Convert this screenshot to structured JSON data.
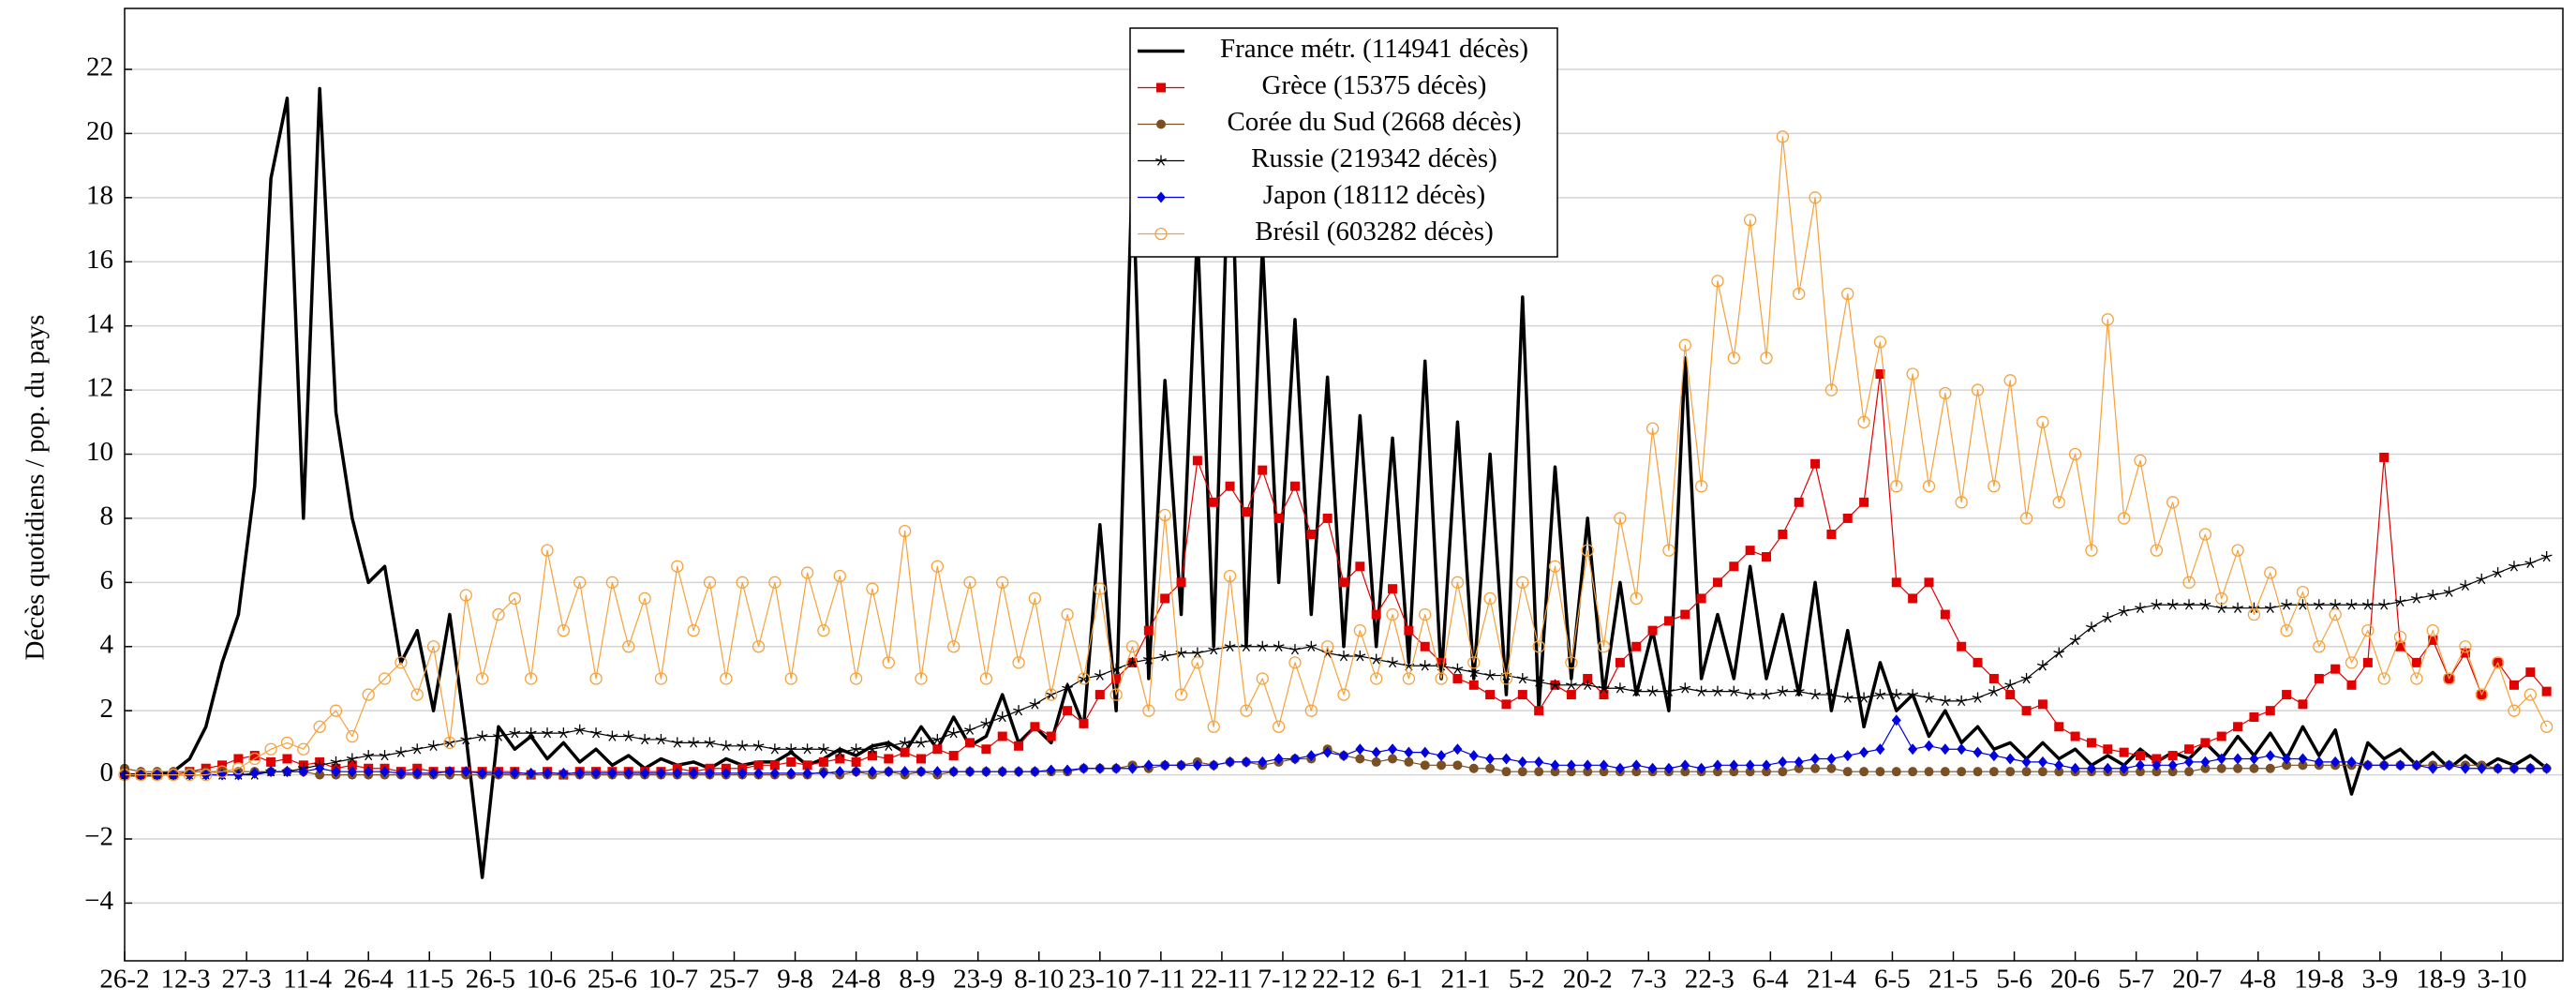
{
  "chart_data": {
    "type": "line",
    "y_label": "Décès quotidiens / pop. du pays",
    "x": [
      0,
      4,
      8,
      12,
      16,
      20,
      24,
      28,
      32,
      36,
      40,
      44,
      48,
      52,
      56,
      60,
      64,
      68,
      72,
      76,
      80,
      84,
      88,
      92,
      96,
      100,
      104,
      108,
      112,
      116,
      120,
      124,
      128,
      132,
      136,
      140,
      144,
      148,
      152,
      156,
      160,
      164,
      168,
      172,
      176,
      180,
      184,
      188,
      192,
      196,
      200,
      204,
      208,
      212,
      216,
      220,
      224,
      228,
      232,
      236,
      240,
      244,
      248,
      252,
      256,
      260,
      264,
      268,
      272,
      276,
      280,
      284,
      288,
      292,
      296,
      300,
      304,
      308,
      312,
      316,
      320,
      324,
      328,
      332,
      336,
      340,
      344,
      348,
      352,
      356,
      360,
      364,
      368,
      372,
      376,
      380,
      384,
      388,
      392,
      396,
      400,
      404,
      408,
      412,
      416,
      420,
      424,
      428,
      432,
      436,
      440,
      444,
      448,
      452,
      456,
      460,
      464,
      468,
      472,
      476,
      480,
      484,
      488,
      492,
      496,
      500,
      504,
      508,
      512,
      516,
      520,
      524,
      528,
      532,
      536,
      540,
      544,
      548,
      552,
      556,
      560,
      564,
      568,
      572,
      576,
      580,
      584,
      588,
      592,
      596
    ],
    "xlim": [
      0,
      600
    ],
    "xticks": [
      {
        "value": 0,
        "label": "26-2"
      },
      {
        "value": 15,
        "label": "12-3"
      },
      {
        "value": 30,
        "label": "27-3"
      },
      {
        "value": 45,
        "label": "11-4"
      },
      {
        "value": 60,
        "label": "26-4"
      },
      {
        "value": 75,
        "label": "11-5"
      },
      {
        "value": 90,
        "label": "26-5"
      },
      {
        "value": 105,
        "label": "10-6"
      },
      {
        "value": 120,
        "label": "25-6"
      },
      {
        "value": 135,
        "label": "10-7"
      },
      {
        "value": 150,
        "label": "25-7"
      },
      {
        "value": 165,
        "label": "9-8"
      },
      {
        "value": 180,
        "label": "24-8"
      },
      {
        "value": 195,
        "label": "8-9"
      },
      {
        "value": 210,
        "label": "23-9"
      },
      {
        "value": 225,
        "label": "8-10"
      },
      {
        "value": 240,
        "label": "23-10"
      },
      {
        "value": 255,
        "label": "7-11"
      },
      {
        "value": 270,
        "label": "22-11"
      },
      {
        "value": 285,
        "label": "7-12"
      },
      {
        "value": 300,
        "label": "22-12"
      },
      {
        "value": 315,
        "label": "6-1"
      },
      {
        "value": 330,
        "label": "21-1"
      },
      {
        "value": 345,
        "label": "5-2"
      },
      {
        "value": 360,
        "label": "20-2"
      },
      {
        "value": 375,
        "label": "7-3"
      },
      {
        "value": 390,
        "label": "22-3"
      },
      {
        "value": 405,
        "label": "6-4"
      },
      {
        "value": 420,
        "label": "21-4"
      },
      {
        "value": 435,
        "label": "6-5"
      },
      {
        "value": 450,
        "label": "21-5"
      },
      {
        "value": 465,
        "label": "5-6"
      },
      {
        "value": 480,
        "label": "20-6"
      },
      {
        "value": 495,
        "label": "5-7"
      },
      {
        "value": 510,
        "label": "20-7"
      },
      {
        "value": 525,
        "label": "4-8"
      },
      {
        "value": 540,
        "label": "19-8"
      },
      {
        "value": 555,
        "label": "3-9"
      },
      {
        "value": 570,
        "label": "18-9"
      },
      {
        "value": 585,
        "label": "3-10"
      }
    ],
    "ylim": [
      -5.8,
      23.9
    ],
    "yticks": [
      {
        "value": -4,
        "label": "−4"
      },
      {
        "value": -2,
        "label": "−2"
      },
      0,
      2,
      4,
      6,
      8,
      10,
      12,
      14,
      16,
      18,
      20,
      22
    ],
    "grid": true,
    "legend": "upper center",
    "series": [
      {
        "name": "France métr. (114941 décès)",
        "color": "#000000",
        "marker": "none",
        "line_width": 3.5,
        "values": [
          0,
          0,
          0,
          0.1,
          0.5,
          1.5,
          3.5,
          5,
          9,
          18.6,
          21.1,
          8,
          21.4,
          11.3,
          8,
          6,
          6.5,
          3.5,
          4.5,
          2,
          5,
          1.2,
          -3.2,
          1.5,
          0.8,
          1.2,
          0.5,
          1,
          0.4,
          0.8,
          0.3,
          0.6,
          0.2,
          0.5,
          0.3,
          0.4,
          0.2,
          0.5,
          0.3,
          0.4,
          0.4,
          0.7,
          0.3,
          0.5,
          0.8,
          0.6,
          0.9,
          1,
          0.7,
          1.5,
          0.8,
          1.8,
          0.9,
          1.2,
          2.5,
          1,
          1.5,
          1,
          2.8,
          1.5,
          7.8,
          2,
          19,
          3,
          12.3,
          5,
          17,
          4,
          21,
          4,
          16.5,
          6,
          14.2,
          5,
          12.4,
          4,
          11.2,
          4,
          10.5,
          3.5,
          12.9,
          3,
          11,
          3,
          10,
          2.5,
          14.9,
          2,
          9.6,
          3,
          8,
          2.5,
          6,
          2.5,
          4.5,
          2,
          13,
          3,
          5,
          3,
          6.5,
          3,
          5,
          2.5,
          6,
          2,
          4.5,
          1.5,
          3.5,
          2,
          2.5,
          1.2,
          2,
          1,
          1.5,
          0.8,
          1,
          0.5,
          1,
          0.5,
          0.8,
          0.3,
          0.6,
          0.3,
          0.8,
          0.4,
          0.7,
          0.5,
          1,
          0.5,
          1.2,
          0.6,
          1.3,
          0.5,
          1.5,
          0.6,
          1.4,
          -0.6,
          1,
          0.5,
          0.8,
          0.3,
          0.7,
          0.2,
          0.6,
          0.2,
          0.5,
          0.3,
          0.6,
          0.2
        ]
      },
      {
        "name": "Grèce (15375 décès)",
        "color": "#e00000",
        "marker": "square",
        "line_width": 1.2,
        "values": [
          0,
          0,
          0,
          0,
          0.1,
          0.2,
          0.3,
          0.5,
          0.6,
          0.4,
          0.5,
          0.3,
          0.4,
          0.2,
          0.3,
          0.2,
          0.2,
          0.1,
          0.2,
          0.1,
          0.1,
          0.1,
          0.1,
          0.1,
          0.1,
          0,
          0.1,
          0,
          0.1,
          0.1,
          0.1,
          0.1,
          0.1,
          0.1,
          0.2,
          0.1,
          0.2,
          0.2,
          0.2,
          0.3,
          0.3,
          0.4,
          0.3,
          0.4,
          0.5,
          0.4,
          0.6,
          0.5,
          0.7,
          0.5,
          0.8,
          0.6,
          1,
          0.8,
          1.2,
          0.9,
          1.5,
          1.2,
          2,
          1.6,
          2.5,
          3,
          3.5,
          4.5,
          5.5,
          6,
          9.8,
          8.5,
          9,
          8.2,
          9.5,
          8,
          9,
          7.5,
          8,
          6,
          6.5,
          5,
          5.8,
          4.5,
          4,
          3.5,
          3,
          2.8,
          2.5,
          2.2,
          2.5,
          2,
          2.8,
          2.5,
          3,
          2.5,
          3.5,
          4,
          4.5,
          4.8,
          5,
          5.5,
          6,
          6.5,
          7,
          6.8,
          7.5,
          8.5,
          9.7,
          7.5,
          8,
          8.5,
          12.5,
          6,
          5.5,
          6,
          5,
          4,
          3.5,
          3,
          2.5,
          2,
          2.2,
          1.5,
          1.2,
          1,
          0.8,
          0.7,
          0.6,
          0.5,
          0.6,
          0.8,
          1,
          1.2,
          1.5,
          1.8,
          2,
          2.5,
          2.2,
          3,
          3.3,
          2.8,
          3.5,
          9.9,
          4,
          3.5,
          4.2,
          3,
          3.8,
          2.5,
          3.5,
          2.8,
          3.2,
          2.6
        ]
      },
      {
        "name": "Corée du Sud (2668 décès)",
        "color": "#7b4f24",
        "marker": "circle",
        "line_width": 1.2,
        "values": [
          0.2,
          0.1,
          0.1,
          0.1,
          0.1,
          0.1,
          0.1,
          0.1,
          0.1,
          0.1,
          0.1,
          0.1,
          0,
          0,
          0,
          0,
          0,
          0,
          0,
          0,
          0,
          0,
          0,
          0,
          0,
          0,
          0,
          0,
          0,
          0,
          0,
          0,
          0,
          0,
          0,
          0,
          0,
          0,
          0,
          0,
          0,
          0,
          0,
          0.1,
          0,
          0.1,
          0,
          0.1,
          0,
          0.1,
          0,
          0.1,
          0.1,
          0.1,
          0.1,
          0.1,
          0.1,
          0.1,
          0.1,
          0.2,
          0.2,
          0.2,
          0.3,
          0.2,
          0.3,
          0.3,
          0.4,
          0.3,
          0.4,
          0.4,
          0.3,
          0.4,
          0.5,
          0.5,
          0.8,
          0.6,
          0.5,
          0.4,
          0.5,
          0.4,
          0.3,
          0.3,
          0.3,
          0.2,
          0.2,
          0.1,
          0.1,
          0.1,
          0.1,
          0.1,
          0.1,
          0.1,
          0.1,
          0.1,
          0.1,
          0.1,
          0.1,
          0.1,
          0.1,
          0.1,
          0.1,
          0.1,
          0.1,
          0.2,
          0.2,
          0.2,
          0.1,
          0.1,
          0.1,
          0.1,
          0.1,
          0.1,
          0.1,
          0.1,
          0.1,
          0.1,
          0.1,
          0.1,
          0.1,
          0.1,
          0.1,
          0.1,
          0.1,
          0.1,
          0.1,
          0.1,
          0.1,
          0.1,
          0.2,
          0.2,
          0.2,
          0.2,
          0.2,
          0.3,
          0.3,
          0.3,
          0.3,
          0.3,
          0.3,
          0.3,
          0.3,
          0.3,
          0.3,
          0.3,
          0.3,
          0.3,
          0.2,
          0.2,
          0.2,
          0.2
        ]
      },
      {
        "name": "Russie (219342 décès)",
        "color": "#000000",
        "marker": "star",
        "line_width": 1.2,
        "values": [
          0,
          0,
          0,
          0,
          0,
          0,
          0,
          0,
          0,
          0.1,
          0.1,
          0.2,
          0.3,
          0.4,
          0.5,
          0.6,
          0.6,
          0.7,
          0.8,
          0.9,
          1,
          1.1,
          1.2,
          1.2,
          1.3,
          1.3,
          1.3,
          1.3,
          1.4,
          1.3,
          1.2,
          1.2,
          1.1,
          1.1,
          1,
          1,
          1,
          0.9,
          0.9,
          0.9,
          0.8,
          0.8,
          0.8,
          0.8,
          0.7,
          0.8,
          0.8,
          0.9,
          1,
          1,
          1.1,
          1.3,
          1.4,
          1.6,
          1.8,
          2,
          2.2,
          2.5,
          2.7,
          3,
          3.1,
          3.3,
          3.5,
          3.6,
          3.7,
          3.8,
          3.8,
          3.9,
          4,
          4,
          4,
          4,
          3.9,
          4,
          3.8,
          3.7,
          3.7,
          3.6,
          3.5,
          3.4,
          3.4,
          3.4,
          3.3,
          3.2,
          3.1,
          3.1,
          3,
          2.9,
          2.8,
          2.8,
          2.8,
          2.7,
          2.7,
          2.6,
          2.6,
          2.6,
          2.7,
          2.6,
          2.6,
          2.6,
          2.5,
          2.5,
          2.6,
          2.6,
          2.5,
          2.5,
          2.4,
          2.4,
          2.5,
          2.5,
          2.5,
          2.4,
          2.3,
          2.3,
          2.4,
          2.6,
          2.8,
          3,
          3.4,
          3.8,
          4.2,
          4.6,
          4.9,
          5.1,
          5.2,
          5.3,
          5.3,
          5.3,
          5.3,
          5.2,
          5.2,
          5.2,
          5.2,
          5.3,
          5.3,
          5.3,
          5.3,
          5.3,
          5.3,
          5.3,
          5.4,
          5.5,
          5.6,
          5.7,
          5.9,
          6.1,
          6.3,
          6.5,
          6.6,
          6.8
        ]
      },
      {
        "name": "Japon (18112 décès)",
        "color": "#0000e0",
        "marker": "diamond",
        "line_width": 1.2,
        "values": [
          0,
          0,
          0,
          0,
          0,
          0,
          0,
          0,
          0.05,
          0.1,
          0.1,
          0.1,
          0.2,
          0.1,
          0.1,
          0.1,
          0.1,
          0.05,
          0.05,
          0.05,
          0.1,
          0.1,
          0.05,
          0.05,
          0.05,
          0.05,
          0.05,
          0.05,
          0.05,
          0.05,
          0.05,
          0.05,
          0.05,
          0.05,
          0.05,
          0.05,
          0.05,
          0.05,
          0.05,
          0.05,
          0.05,
          0.05,
          0.05,
          0.05,
          0.1,
          0.1,
          0.1,
          0.1,
          0.1,
          0.1,
          0.1,
          0.1,
          0.1,
          0.1,
          0.1,
          0.1,
          0.1,
          0.15,
          0.15,
          0.2,
          0.2,
          0.2,
          0.2,
          0.3,
          0.3,
          0.3,
          0.3,
          0.3,
          0.4,
          0.4,
          0.4,
          0.5,
          0.5,
          0.6,
          0.7,
          0.6,
          0.8,
          0.7,
          0.8,
          0.7,
          0.7,
          0.6,
          0.8,
          0.6,
          0.5,
          0.5,
          0.4,
          0.4,
          0.3,
          0.3,
          0.3,
          0.3,
          0.2,
          0.3,
          0.2,
          0.2,
          0.3,
          0.2,
          0.3,
          0.3,
          0.3,
          0.3,
          0.4,
          0.4,
          0.5,
          0.5,
          0.6,
          0.7,
          0.8,
          1.7,
          0.8,
          0.9,
          0.8,
          0.8,
          0.7,
          0.6,
          0.5,
          0.4,
          0.4,
          0.3,
          0.2,
          0.2,
          0.2,
          0.2,
          0.3,
          0.3,
          0.3,
          0.4,
          0.4,
          0.5,
          0.5,
          0.5,
          0.6,
          0.5,
          0.5,
          0.4,
          0.4,
          0.4,
          0.3,
          0.3,
          0.3,
          0.3,
          0.2,
          0.3,
          0.2,
          0.2,
          0.2,
          0.2,
          0.2,
          0.2
        ]
      },
      {
        "name": "Brésil (603282 décès)",
        "color": "#f7a13a",
        "marker": "open-circle",
        "line_width": 1.2,
        "values": [
          0,
          0,
          0,
          0,
          0,
          0,
          0.1,
          0.2,
          0.5,
          0.8,
          1,
          0.8,
          1.5,
          2,
          1.2,
          2.5,
          3,
          3.5,
          2.5,
          4,
          1,
          5.6,
          3,
          5,
          5.5,
          3,
          7,
          4.5,
          6,
          3,
          6,
          4,
          5.5,
          3,
          6.5,
          4.5,
          6,
          3,
          6,
          4,
          6,
          3,
          6.3,
          4.5,
          6.2,
          3,
          5.8,
          3.5,
          7.6,
          3,
          6.5,
          4,
          6,
          3,
          6,
          3.5,
          5.5,
          2.5,
          5,
          3,
          5.8,
          2.5,
          4,
          2,
          8.1,
          2.5,
          3.5,
          1.5,
          6.2,
          2,
          3,
          1.5,
          3.5,
          2,
          4,
          2.5,
          4.5,
          3,
          5,
          3,
          5,
          3,
          6,
          3.5,
          5.5,
          3,
          6,
          4,
          6.5,
          3.5,
          7,
          4,
          8,
          5.5,
          10.8,
          7,
          13.4,
          9,
          15.4,
          13,
          17.3,
          13,
          19.9,
          15,
          18,
          12,
          15,
          11,
          13.5,
          9,
          12.5,
          9,
          11.9,
          8.5,
          12,
          9,
          12.3,
          8,
          11,
          8.5,
          10,
          7,
          14.2,
          8,
          9.8,
          7,
          8.5,
          6,
          7.5,
          5.5,
          7,
          5,
          6.3,
          4.5,
          5.7,
          4,
          5,
          3.5,
          4.5,
          3,
          4.3,
          3,
          4.5,
          3,
          4,
          2.5,
          3.5,
          2,
          2.5,
          1.5
        ]
      }
    ]
  }
}
